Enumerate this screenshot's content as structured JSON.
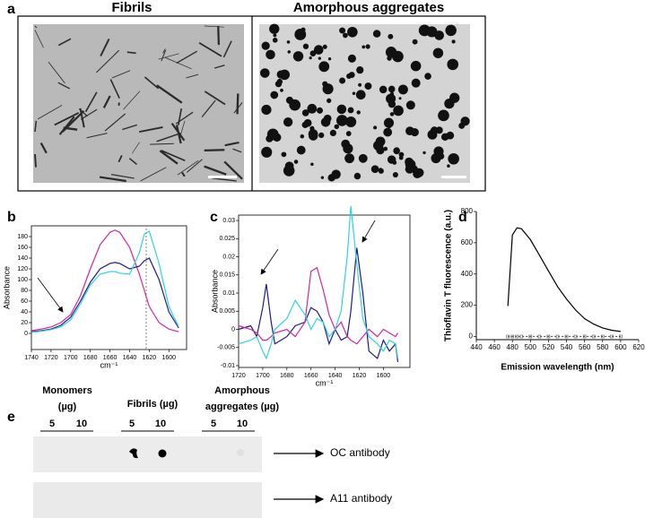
{
  "panel_a": {
    "label": "a",
    "titles": [
      "Fibrils",
      "Amorphous aggregates"
    ]
  },
  "panel_e": {
    "label": "e",
    "groups": [
      {
        "lines": [
          "Monomers",
          "(µg)"
        ],
        "amounts": [
          "5",
          "10"
        ]
      },
      {
        "lines": [
          "Fibrils (µg)"
        ],
        "amounts": [
          "5",
          "10"
        ]
      },
      {
        "lines": [
          "Amorphous",
          "aggregates (µg)"
        ],
        "amounts": [
          "5",
          "10"
        ]
      }
    ],
    "antibodies": [
      "OC antibody",
      "A11 antibody"
    ]
  },
  "chart_data": [
    {
      "type": "line",
      "label": "b",
      "y_label": "Absorbance",
      "x_label": "cm⁻¹",
      "frame": true,
      "x": [
        1740,
        1730,
        1720,
        1710,
        1700,
        1690,
        1680,
        1670,
        1660,
        1655,
        1650,
        1640,
        1630,
        1625,
        1620,
        1610,
        1600,
        1590
      ],
      "series": [
        {
          "color": "#d6249b",
          "values": [
            5,
            8,
            12,
            20,
            35,
            70,
            120,
            165,
            188,
            192,
            188,
            160,
            110,
            80,
            50,
            20,
            8,
            3
          ]
        },
        {
          "color": "#1c1c8c",
          "values": [
            3,
            5,
            8,
            15,
            30,
            60,
            95,
            120,
            130,
            132,
            130,
            120,
            125,
            135,
            140,
            100,
            40,
            10
          ]
        },
        {
          "color": "#2fd3e0",
          "values": [
            2,
            4,
            7,
            12,
            25,
            55,
            90,
            110,
            115,
            115,
            112,
            110,
            150,
            185,
            190,
            130,
            50,
            12
          ]
        }
      ],
      "xlim": [
        1740,
        1582
      ],
      "ylim": [
        -30,
        200
      ],
      "xticks": [
        1740,
        1720,
        1700,
        1680,
        1660,
        1640,
        1620,
        1600
      ],
      "yticks": [
        0,
        20,
        40,
        60,
        80,
        100,
        120,
        140,
        160,
        180
      ]
    },
    {
      "type": "line",
      "label": "c",
      "y_label": "Absorbance",
      "x_label": "cm⁻¹",
      "frame": true,
      "x": [
        1720,
        1710,
        1705,
        1700,
        1697,
        1693,
        1690,
        1680,
        1673,
        1665,
        1660,
        1655,
        1650,
        1645,
        1640,
        1635,
        1630,
        1627,
        1622,
        1617,
        1612,
        1605,
        1600,
        1595,
        1590,
        1588
      ],
      "series": [
        {
          "color": "#1c1c8c",
          "values": [
            0,
            0.001,
            -0.002,
            0.006,
            0.0125,
            0.002,
            -0.004,
            -0.002,
            0.001,
            0.002,
            0.006,
            0.005,
            0.002,
            -0.004,
            0,
            -0.003,
            -0.002,
            0.005,
            0.0225,
            0.01,
            -0.006,
            -0.008,
            -0.003,
            -0.006,
            -0.004,
            -0.009
          ]
        },
        {
          "color": "#d6249b",
          "values": [
            0.001,
            0,
            -0.001,
            -0.003,
            -0.003,
            -0.002,
            -0.001,
            0,
            -0.002,
            0.002,
            0.016,
            0.017,
            0.011,
            0.004,
            0,
            0.002,
            -0.002,
            -0.003,
            -0.004,
            -0.002,
            0,
            -0.002,
            0,
            -0.001,
            -0.002,
            -0.001
          ]
        },
        {
          "color": "#2fd3e0",
          "values": [
            -0.004,
            -0.003,
            -0.002,
            -0.006,
            -0.008,
            -0.004,
            0,
            0.003,
            0.008,
            0.004,
            0,
            0.003,
            0.002,
            -0.002,
            0,
            0.005,
            0.02,
            0.034,
            0.018,
            0.003,
            -0.002,
            -0.004,
            -0.006,
            -0.003,
            -0.004,
            -0.008
          ]
        }
      ],
      "xlim": [
        1720,
        1578
      ],
      "ylim": [
        -0.0105,
        0.0315
      ],
      "xticks": [
        1720,
        1700,
        1680,
        1660,
        1640,
        1620,
        1600
      ],
      "yticks": [
        -0.01,
        -0.005,
        0,
        0.005,
        0.01,
        0.015,
        0.02,
        0.025,
        0.03
      ]
    },
    {
      "type": "line",
      "label": "d",
      "y_label": "Thioflavin T fluorescence (a.u.)",
      "x_label": "Emission wavelength (nm)",
      "frame": false,
      "x": [
        475,
        480,
        485,
        490,
        500,
        510,
        520,
        530,
        540,
        550,
        560,
        570,
        580,
        590,
        600
      ],
      "series": [
        {
          "color": "#000000",
          "values": [
            195,
            650,
            695,
            690,
            620,
            520,
            420,
            320,
            240,
            170,
            115,
            80,
            55,
            40,
            32
          ]
        },
        {
          "color": "#555555",
          "dashed": true,
          "markers": true,
          "values": [
            0,
            0,
            0,
            0,
            0,
            0,
            0,
            0,
            0,
            0,
            0,
            0,
            0,
            0,
            0
          ]
        }
      ],
      "xlim": [
        440,
        620
      ],
      "ylim": [
        -20,
        800
      ],
      "xticks": [
        440,
        460,
        480,
        500,
        520,
        540,
        560,
        580,
        600,
        620
      ],
      "yticks": [
        0,
        200,
        400,
        600,
        800
      ]
    }
  ]
}
